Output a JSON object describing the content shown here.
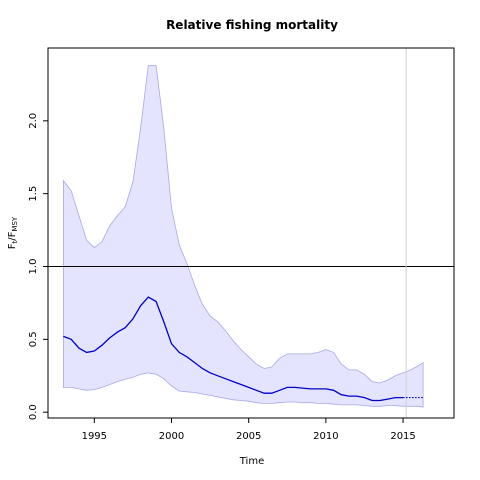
{
  "chart_data": {
    "type": "area",
    "title": "Relative fishing mortality",
    "xlabel": "Time",
    "ylabel": {
      "main": "F",
      "sub1": "t",
      "sep": "/F",
      "sub2": "MSY"
    },
    "xlim": [
      1992,
      2018.3
    ],
    "ylim": [
      -0.04,
      2.5
    ],
    "xticks": [
      1995,
      2000,
      2005,
      2010,
      2015
    ],
    "yticks": [
      0.0,
      0.5,
      1.0,
      1.5,
      2.0
    ],
    "xtick_labels": [
      "1995",
      "2000",
      "2005",
      "2010",
      "2015"
    ],
    "ytick_labels": [
      "0.0",
      "0.5",
      "1.0",
      "1.5",
      "2.0"
    ],
    "reference_line_y": 1.0,
    "vertical_line_x": 2015.2,
    "forecast_start_x": 2015.2,
    "colors": {
      "band_fill": "#e4e4ff",
      "band_edge": "#a8a8e8",
      "estimate": "#0000cc",
      "reference": "#000000",
      "vertical": "#d0d0d0"
    },
    "x": [
      1993,
      1993.5,
      1994,
      1994.5,
      1995,
      1995.5,
      1996,
      1996.5,
      1997,
      1997.5,
      1998,
      1998.5,
      1999,
      1999.5,
      2000,
      2000.5,
      2001,
      2001.5,
      2002,
      2002.5,
      2003,
      2003.5,
      2004,
      2004.5,
      2005,
      2005.5,
      2006,
      2006.5,
      2007,
      2007.5,
      2008,
      2008.5,
      2009,
      2009.5,
      2010,
      2010.5,
      2011,
      2011.5,
      2012,
      2012.5,
      2013,
      2013.5,
      2014,
      2014.5,
      2015,
      2015.5,
      2016,
      2016.3
    ],
    "series": [
      {
        "role": "estimate",
        "values": [
          0.52,
          0.5,
          0.44,
          0.41,
          0.42,
          0.46,
          0.51,
          0.55,
          0.58,
          0.64,
          0.73,
          0.79,
          0.76,
          0.62,
          0.47,
          0.41,
          0.38,
          0.34,
          0.3,
          0.27,
          0.25,
          0.23,
          0.21,
          0.19,
          0.17,
          0.15,
          0.13,
          0.13,
          0.15,
          0.17,
          0.17,
          0.165,
          0.16,
          0.16,
          0.16,
          0.15,
          0.12,
          0.11,
          0.11,
          0.1,
          0.08,
          0.08,
          0.09,
          0.1,
          0.1,
          0.1,
          0.1,
          0.1
        ]
      },
      {
        "role": "upper",
        "values": [
          1.59,
          1.52,
          1.35,
          1.18,
          1.13,
          1.17,
          1.28,
          1.35,
          1.41,
          1.58,
          1.95,
          2.38,
          2.38,
          1.95,
          1.4,
          1.15,
          1.02,
          0.87,
          0.74,
          0.66,
          0.62,
          0.56,
          0.49,
          0.43,
          0.38,
          0.33,
          0.3,
          0.31,
          0.37,
          0.4,
          0.4,
          0.4,
          0.4,
          0.41,
          0.43,
          0.41,
          0.33,
          0.29,
          0.29,
          0.26,
          0.21,
          0.2,
          0.22,
          0.25,
          0.27,
          0.29,
          0.32,
          0.34
        ]
      },
      {
        "role": "lower",
        "values": [
          0.17,
          0.17,
          0.16,
          0.15,
          0.155,
          0.17,
          0.19,
          0.21,
          0.225,
          0.24,
          0.26,
          0.27,
          0.26,
          0.23,
          0.18,
          0.145,
          0.14,
          0.135,
          0.125,
          0.115,
          0.105,
          0.095,
          0.085,
          0.08,
          0.075,
          0.065,
          0.06,
          0.06,
          0.065,
          0.07,
          0.07,
          0.065,
          0.065,
          0.06,
          0.06,
          0.055,
          0.05,
          0.05,
          0.05,
          0.045,
          0.04,
          0.04,
          0.045,
          0.045,
          0.04,
          0.04,
          0.04,
          0.035
        ]
      }
    ]
  }
}
